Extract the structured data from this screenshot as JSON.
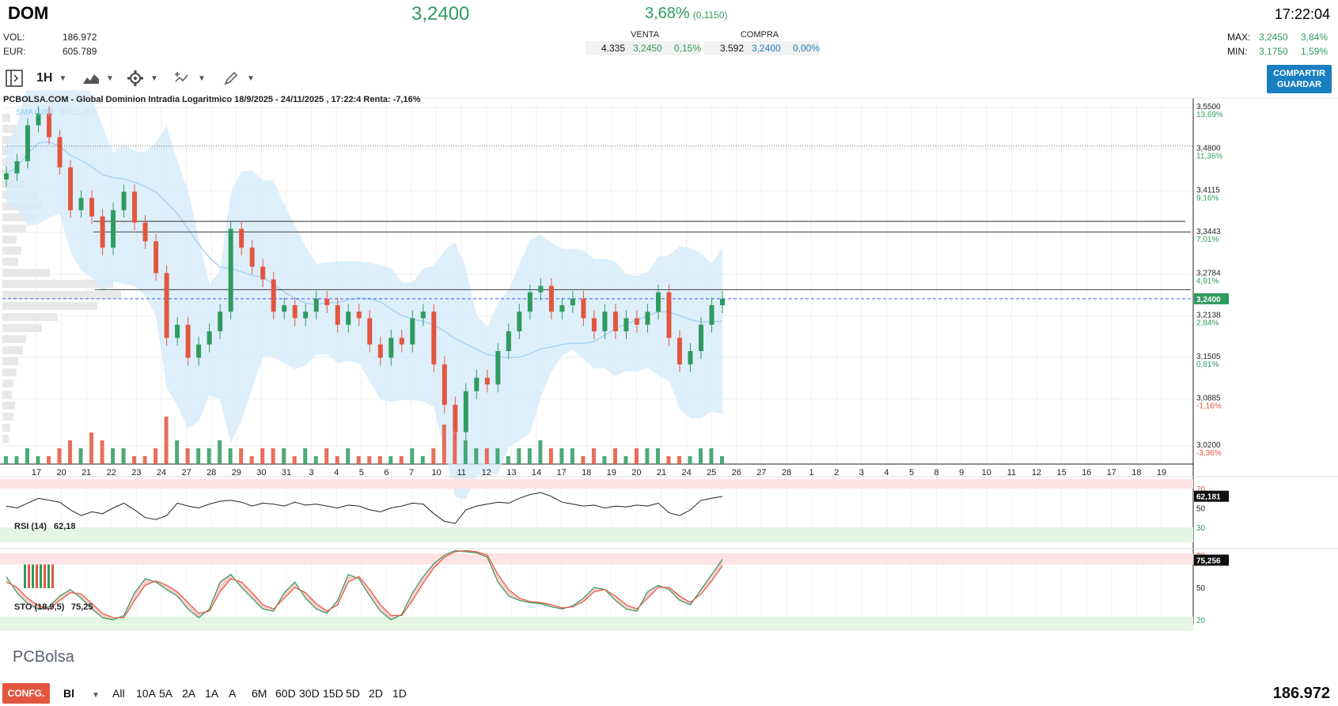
{
  "header": {
    "ticker": "DOM",
    "price": "3,2400",
    "change_pct": "3,68%",
    "change_abs": "(0,1150)",
    "time": "17:22:04",
    "vol_label": "VOL:",
    "vol_value": "186.972",
    "eur_label": "EUR:",
    "eur_value": "605.789"
  },
  "book": {
    "sell_label": "VENTA",
    "buy_label": "COMPRA",
    "sell_qty": "4.335",
    "sell_price": "3,2450",
    "sell_pct": "0,15%",
    "buy_qty": "3.592",
    "buy_price": "3,2400",
    "buy_pct": "0,00%"
  },
  "range": {
    "max_label": "MAX:",
    "max_price": "3,2450",
    "max_pct": "3,84%",
    "min_label": "MIN:",
    "min_price": "3,1750",
    "min_pct": "1,59%"
  },
  "toolbar": {
    "interval": "1H",
    "share_label": "COMPARTIR",
    "save_label": "GUARDAR",
    "icons": [
      "panel-toggle-icon",
      "chart-type-icon",
      "settings-gear-icon",
      "indicators-icon",
      "drawing-pen-icon"
    ]
  },
  "chart_title": "PCBOLSA.COM - Global Dominion Intradia Logaritmico 18/9/2025 - 24/11/2025 , 17:22:4 Renta: -7,16%",
  "legend": {
    "sma": "SMA (100)",
    "boll": "BOLL (20)"
  },
  "colors": {
    "up": "#2e9b5f",
    "down": "#e2563f",
    "band": "#d6ebfb",
    "sma": "#a8d4f2",
    "accent": "#1a7fc1"
  },
  "chart_data": [
    {
      "type": "candlestick",
      "scale": "log",
      "y_ticks": [
        {
          "price": "3,5500",
          "pct": "13,69%"
        },
        {
          "price": "3,4800",
          "pct": "11,36%"
        },
        {
          "price": "3,4115",
          "pct": "9,16%"
        },
        {
          "price": "3,3443",
          "pct": "7,01%"
        },
        {
          "price": "3,2784",
          "pct": "4,91%"
        },
        {
          "price": "3,2138",
          "pct": "2,84%"
        },
        {
          "price": "3,1505",
          "pct": "0,81%"
        },
        {
          "price": "3,0885",
          "pct": "-1,16%"
        },
        {
          "price": "3,0200",
          "pct": "-3,36%"
        }
      ],
      "y_values": [
        3.55,
        3.48,
        3.4115,
        3.3443,
        3.2784,
        3.2138,
        3.1505,
        3.0885,
        3.02
      ],
      "last_price_label": "3,2400",
      "last_price": 3.24,
      "x_labels": [
        "17",
        "20",
        "21",
        "22",
        "23",
        "24",
        "27",
        "28",
        "29",
        "30",
        "31",
        "3",
        "4",
        "5",
        "6",
        "7",
        "10",
        "11",
        "12",
        "13",
        "14",
        "17",
        "18",
        "19",
        "20",
        "21",
        "24",
        "25",
        "26",
        "27",
        "28",
        "1",
        "2",
        "3",
        "4",
        "5",
        "8",
        "9",
        "10",
        "11",
        "12",
        "15",
        "16",
        "17",
        "18",
        "19"
      ],
      "horizontal_lines": [
        3.485,
        3.362,
        3.345,
        3.254
      ],
      "close_series": [
        3.44,
        3.46,
        3.52,
        3.54,
        3.5,
        3.45,
        3.38,
        3.4,
        3.37,
        3.32,
        3.38,
        3.41,
        3.36,
        3.33,
        3.28,
        3.18,
        3.2,
        3.15,
        3.17,
        3.19,
        3.22,
        3.35,
        3.32,
        3.29,
        3.27,
        3.22,
        3.23,
        3.21,
        3.22,
        3.24,
        3.23,
        3.2,
        3.22,
        3.21,
        3.17,
        3.15,
        3.18,
        3.17,
        3.21,
        3.22,
        3.14,
        3.08,
        3.04,
        3.1,
        3.12,
        3.11,
        3.16,
        3.19,
        3.22,
        3.25,
        3.26,
        3.22,
        3.23,
        3.24,
        3.21,
        3.19,
        3.22,
        3.19,
        3.21,
        3.2,
        3.22,
        3.25,
        3.18,
        3.14,
        3.16,
        3.2,
        3.23,
        3.24
      ]
    },
    {
      "type": "line",
      "name": "RSI (14)",
      "value_label": "62,18",
      "last_label": "62,181",
      "levels": [
        70,
        50,
        30
      ],
      "values": [
        52,
        50,
        55,
        60,
        58,
        56,
        48,
        42,
        46,
        44,
        50,
        55,
        48,
        40,
        38,
        42,
        55,
        52,
        50,
        54,
        57,
        58,
        56,
        52,
        55,
        54,
        52,
        56,
        53,
        54,
        52,
        50,
        53,
        52,
        48,
        46,
        50,
        52,
        55,
        54,
        44,
        36,
        34,
        48,
        52,
        54,
        56,
        55,
        60,
        64,
        66,
        62,
        56,
        54,
        52,
        53,
        50,
        52,
        51,
        53,
        52,
        55,
        45,
        42,
        48,
        58,
        60,
        62
      ]
    },
    {
      "type": "line",
      "name": "STO (18,9,5)",
      "value_label": "75,25",
      "last_label": "75,256",
      "levels": [
        80,
        50,
        20
      ],
      "k_values": [
        60,
        45,
        35,
        30,
        32,
        42,
        48,
        40,
        30,
        22,
        20,
        24,
        45,
        58,
        55,
        48,
        42,
        30,
        22,
        30,
        55,
        62,
        50,
        40,
        30,
        28,
        45,
        55,
        40,
        30,
        26,
        38,
        62,
        58,
        42,
        28,
        20,
        25,
        45,
        60,
        72,
        80,
        84,
        83,
        82,
        78,
        55,
        42,
        38,
        36,
        35,
        32,
        30,
        33,
        40,
        50,
        48,
        38,
        30,
        28,
        46,
        52,
        48,
        38,
        34,
        48,
        62,
        76
      ],
      "d_values": [
        55,
        50,
        40,
        33,
        30,
        38,
        45,
        44,
        35,
        26,
        22,
        22,
        38,
        52,
        56,
        52,
        46,
        36,
        26,
        28,
        46,
        58,
        55,
        45,
        34,
        30,
        40,
        50,
        45,
        35,
        28,
        34,
        55,
        60,
        48,
        34,
        24,
        24,
        38,
        54,
        68,
        78,
        83,
        84,
        83,
        80,
        62,
        48,
        40,
        37,
        36,
        34,
        31,
        32,
        37,
        46,
        48,
        42,
        34,
        30,
        40,
        50,
        50,
        42,
        36,
        44,
        56,
        70
      ],
      "band_labels": [
        "80",
        "50",
        "20"
      ]
    },
    {
      "type": "bar",
      "name": "volume",
      "values": [
        1,
        1,
        2,
        1,
        1,
        2,
        3,
        2,
        4,
        3,
        2,
        2,
        1,
        1,
        2,
        6,
        3,
        2,
        2,
        2,
        3,
        2,
        2,
        1,
        2,
        2,
        2,
        1,
        2,
        1,
        2,
        1,
        2,
        1,
        1,
        1,
        1,
        1,
        2,
        1,
        2,
        5,
        4,
        3,
        2,
        2,
        2,
        1,
        2,
        2,
        3,
        2,
        2,
        2,
        1,
        2,
        1,
        2,
        1,
        2,
        2,
        2,
        1,
        1,
        1,
        2,
        2,
        1
      ]
    }
  ],
  "watermark": "PCBolsa",
  "bottom": {
    "config_label": "CONFG.",
    "mode_label": "Bl",
    "periods": [
      "All",
      "10A",
      "5A",
      "2A",
      "1A",
      "A",
      "6M",
      "60D",
      "30D",
      "15D",
      "5D",
      "2D",
      "1D"
    ],
    "volume": "186.972"
  }
}
